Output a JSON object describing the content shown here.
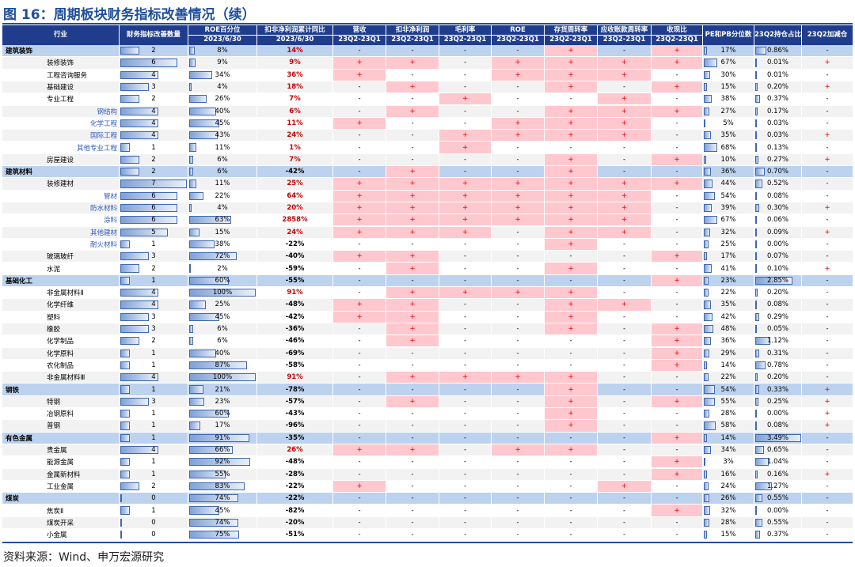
{
  "title": "图 16：周期板块财务指标改善情况（续）",
  "source": "资料来源：Wind、申万宏源研究",
  "table": {
    "columns": [
      {
        "title": "行业"
      },
      {
        "title": "财务指标改善数量"
      },
      {
        "title": "ROE百分位",
        "sub": "2023/6/30"
      },
      {
        "title": "扣非净利润累计同比",
        "sub": "2023/6/30"
      },
      {
        "title": "营收",
        "sub": "23Q2-23Q1"
      },
      {
        "title": "扣非净利润",
        "sub": "23Q2-23Q1"
      },
      {
        "title": "毛利率",
        "sub": "23Q2-23Q1"
      },
      {
        "title": "ROE",
        "sub": "23Q2-23Q1"
      },
      {
        "title": "存货周转率",
        "sub": "23Q2-23Q1"
      },
      {
        "title": "应收账款周转率",
        "sub": "23Q2-23Q1"
      },
      {
        "title": "收现比",
        "sub": "23Q2-23Q1"
      },
      {
        "title": "PE和PB分位数"
      },
      {
        "title": "23Q2持仓占比"
      },
      {
        "title": "23Q2加减仓"
      }
    ],
    "rows": [
      {
        "level": 1,
        "cells": [
          "建筑装饰",
          "2",
          "8%",
          "14%",
          "-",
          "-",
          "-",
          "-",
          "+",
          "-",
          "+",
          "17%",
          "0.86%",
          "-"
        ]
      },
      {
        "level": 2,
        "cells": [
          "装修装饰",
          "6",
          "9%",
          "9%",
          "+",
          "+",
          "-",
          "+",
          "+",
          "+",
          "+",
          "67%",
          "0.01%",
          "+"
        ]
      },
      {
        "level": 2,
        "cells": [
          "工程咨询服务",
          "4",
          "34%",
          "36%",
          "+",
          "-",
          "-",
          "+",
          "+",
          "+",
          "-",
          "30%",
          "0.01%",
          "-"
        ]
      },
      {
        "level": 2,
        "cells": [
          "基础建设",
          "3",
          "4%",
          "18%",
          "-",
          "+",
          "-",
          "-",
          "+",
          "-",
          "+",
          "15%",
          "0.20%",
          "+"
        ]
      },
      {
        "level": 2,
        "cells": [
          "专业工程",
          "2",
          "26%",
          "7%",
          "-",
          "-",
          "+",
          "-",
          "-",
          "+",
          "-",
          "38%",
          "0.37%",
          "-"
        ]
      },
      {
        "level": 3,
        "cells": [
          "钢结构",
          "4",
          "40%",
          "6%",
          "-",
          "+",
          "-",
          "-",
          "+",
          "+",
          "+",
          "27%",
          "0.17%",
          "-"
        ]
      },
      {
        "level": 3,
        "cells": [
          "化学工程",
          "4",
          "45%",
          "11%",
          "+",
          "-",
          "-",
          "+",
          "+",
          "+",
          "-",
          "5%",
          "0.03%",
          "-"
        ]
      },
      {
        "level": 3,
        "cells": [
          "国际工程",
          "4",
          "43%",
          "24%",
          "-",
          "-",
          "+",
          "+",
          "+",
          "+",
          "-",
          "35%",
          "0.03%",
          "+"
        ]
      },
      {
        "level": 3,
        "cells": [
          "其他专业工程",
          "1",
          "11%",
          "1%",
          "-",
          "-",
          "+",
          "-",
          "-",
          "-",
          "-",
          "68%",
          "0.13%",
          "-"
        ]
      },
      {
        "level": 2,
        "cells": [
          "房屋建设",
          "2",
          "6%",
          "7%",
          "-",
          "-",
          "-",
          "-",
          "+",
          "-",
          "+",
          "10%",
          "0.27%",
          "+"
        ]
      },
      {
        "level": 1,
        "cells": [
          "建筑材料",
          "2",
          "6%",
          "-42%",
          "-",
          "+",
          "-",
          "-",
          "+",
          "-",
          "-",
          "36%",
          "0.70%",
          "-"
        ]
      },
      {
        "level": 2,
        "cells": [
          "装修建材",
          "7",
          "11%",
          "25%",
          "+",
          "+",
          "+",
          "+",
          "+",
          "+",
          "+",
          "44%",
          "0.52%",
          "-"
        ]
      },
      {
        "level": 3,
        "cells": [
          "管材",
          "6",
          "22%",
          "64%",
          "+",
          "+",
          "+",
          "+",
          "+",
          "+",
          "-",
          "54%",
          "0.08%",
          "-"
        ]
      },
      {
        "level": 3,
        "cells": [
          "防水材料",
          "6",
          "4%",
          "20%",
          "+",
          "+",
          "+",
          "+",
          "+",
          "+",
          "-",
          "39%",
          "0.30%",
          "+"
        ]
      },
      {
        "level": 3,
        "cells": [
          "涂料",
          "6",
          "63%",
          "2858%",
          "+",
          "+",
          "+",
          "+",
          "+",
          "+",
          "-",
          "67%",
          "0.06%",
          "-"
        ]
      },
      {
        "level": 3,
        "cells": [
          "其他建材",
          "5",
          "15%",
          "24%",
          "+",
          "+",
          "+",
          "-",
          "+",
          "+",
          "-",
          "32%",
          "0.09%",
          "+"
        ]
      },
      {
        "level": 3,
        "cells": [
          "耐火材料",
          "1",
          "38%",
          "-22%",
          "-",
          "-",
          "-",
          "-",
          "+",
          "-",
          "-",
          "25%",
          "0.00%",
          "-"
        ]
      },
      {
        "level": 2,
        "cells": [
          "玻璃玻纤",
          "3",
          "72%",
          "-40%",
          "+",
          "+",
          "-",
          "-",
          "-",
          "-",
          "+",
          "17%",
          "0.07%",
          "-"
        ]
      },
      {
        "level": 2,
        "cells": [
          "水泥",
          "2",
          "2%",
          "-59%",
          "-",
          "+",
          "-",
          "-",
          "+",
          "-",
          "-",
          "41%",
          "0.10%",
          "+"
        ]
      },
      {
        "level": 1,
        "cells": [
          "基础化工",
          "1",
          "60%",
          "-55%",
          "-",
          "-",
          "-",
          "-",
          "-",
          "-",
          "+",
          "23%",
          "2.85%",
          "-"
        ]
      },
      {
        "level": 2,
        "cells": [
          "非金属材料Ⅱ",
          "4",
          "100%",
          "91%",
          "-",
          "+",
          "+",
          "+",
          "+",
          "-",
          "-",
          "22%",
          "0.20%",
          "-"
        ]
      },
      {
        "level": 2,
        "cells": [
          "化学纤维",
          "4",
          "25%",
          "-48%",
          "+",
          "+",
          "-",
          "-",
          "+",
          "+",
          "-",
          "35%",
          "0.08%",
          "-"
        ]
      },
      {
        "level": 2,
        "cells": [
          "塑料",
          "3",
          "45%",
          "-42%",
          "+",
          "+",
          "-",
          "-",
          "+",
          "-",
          "-",
          "42%",
          "0.29%",
          "-"
        ]
      },
      {
        "level": 2,
        "cells": [
          "橡胶",
          "3",
          "6%",
          "-36%",
          "-",
          "+",
          "-",
          "-",
          "+",
          "-",
          "+",
          "48%",
          "0.05%",
          "-"
        ]
      },
      {
        "level": 2,
        "cells": [
          "化学制品",
          "2",
          "6%",
          "-46%",
          "-",
          "+",
          "-",
          "-",
          "-",
          "-",
          "+",
          "36%",
          "1.12%",
          "-"
        ]
      },
      {
        "level": 2,
        "cells": [
          "化学原料",
          "1",
          "40%",
          "-69%",
          "-",
          "-",
          "-",
          "-",
          "-",
          "-",
          "+",
          "29%",
          "0.31%",
          "-"
        ]
      },
      {
        "level": 2,
        "cells": [
          "农化制品",
          "1",
          "87%",
          "-58%",
          "-",
          "-",
          "-",
          "-",
          "-",
          "-",
          "+",
          "14%",
          "0.78%",
          "-"
        ]
      },
      {
        "level": 2,
        "cells": [
          "非金属材料Ⅲ",
          "4",
          "100%",
          "91%",
          "-",
          "+",
          "+",
          "+",
          "+",
          "-",
          "-",
          "22%",
          "0.20%",
          "-"
        ]
      },
      {
        "level": 1,
        "cells": [
          "钢铁",
          "1",
          "21%",
          "-78%",
          "-",
          "-",
          "-",
          "-",
          "+",
          "-",
          "-",
          "54%",
          "0.33%",
          "+"
        ]
      },
      {
        "level": 2,
        "cells": [
          "特钢",
          "3",
          "23%",
          "-57%",
          "-",
          "+",
          "-",
          "-",
          "+",
          "-",
          "+",
          "55%",
          "0.25%",
          "+"
        ]
      },
      {
        "level": 2,
        "cells": [
          "冶钢原料",
          "1",
          "60%",
          "-43%",
          "-",
          "-",
          "-",
          "-",
          "+",
          "-",
          "-",
          "28%",
          "0.00%",
          "+"
        ]
      },
      {
        "level": 2,
        "cells": [
          "普钢",
          "1",
          "17%",
          "-96%",
          "-",
          "-",
          "-",
          "-",
          "+",
          "-",
          "-",
          "58%",
          "0.08%",
          "+"
        ]
      },
      {
        "level": 1,
        "cells": [
          "有色金属",
          "1",
          "91%",
          "-35%",
          "-",
          "-",
          "-",
          "-",
          "-",
          "-",
          "+",
          "14%",
          "3.49%",
          "-"
        ]
      },
      {
        "level": 2,
        "cells": [
          "贵金属",
          "4",
          "66%",
          "26%",
          "+",
          "+",
          "-",
          "+",
          "+",
          "-",
          "-",
          "34%",
          "0.65%",
          "-"
        ]
      },
      {
        "level": 2,
        "cells": [
          "能源金属",
          "1",
          "92%",
          "-48%",
          "-",
          "-",
          "-",
          "-",
          "-",
          "-",
          "+",
          "3%",
          "1.04%",
          "-"
        ]
      },
      {
        "level": 2,
        "cells": [
          "金属新材料",
          "1",
          "55%",
          "-28%",
          "-",
          "-",
          "-",
          "-",
          "-",
          "-",
          "+",
          "16%",
          "0.16%",
          "+"
        ]
      },
      {
        "level": 2,
        "cells": [
          "工业金属",
          "2",
          "83%",
          "-22%",
          "+",
          "-",
          "-",
          "-",
          "-",
          "+",
          "-",
          "24%",
          "1.27%",
          "-"
        ]
      },
      {
        "level": 1,
        "cells": [
          "煤炭",
          "0",
          "74%",
          "-22%",
          "-",
          "-",
          "-",
          "-",
          "-",
          "-",
          "-",
          "26%",
          "0.55%",
          "-"
        ]
      },
      {
        "level": 2,
        "cells": [
          "焦炭Ⅱ",
          "1",
          "45%",
          "-82%",
          "-",
          "-",
          "-",
          "-",
          "-",
          "-",
          "+",
          "32%",
          "0.00%",
          "-"
        ]
      },
      {
        "level": 2,
        "cells": [
          "煤炭开采",
          "0",
          "74%",
          "-20%",
          "-",
          "-",
          "-",
          "-",
          "-",
          "-",
          "-",
          "28%",
          "0.55%",
          "-"
        ]
      },
      {
        "level": 2,
        "cells": [
          "小金属",
          "0",
          "75%",
          "-51%",
          "-",
          "-",
          "-",
          "-",
          "-",
          "-",
          "-",
          "15%",
          "0.37%",
          "-"
        ]
      }
    ]
  }
}
